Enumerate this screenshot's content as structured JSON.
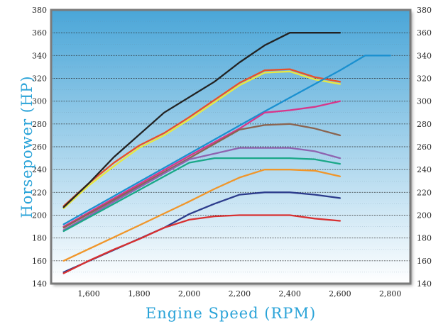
{
  "chart_data": {
    "type": "line",
    "title": "",
    "xlabel": "Engine Speed (RPM)",
    "ylabel": "Horsepower (HP)",
    "xlim": [
      1450,
      2880
    ],
    "ylim": [
      140,
      380
    ],
    "x_ticks": [
      1600,
      1800,
      2000,
      2200,
      2400,
      2600,
      2800
    ],
    "x_tick_labels": [
      "1,600",
      "1,800",
      "2,000",
      "2,200",
      "2,400",
      "2,600",
      "2,800"
    ],
    "y_ticks": [
      140,
      160,
      180,
      200,
      220,
      240,
      260,
      280,
      300,
      320,
      340,
      360,
      380
    ],
    "y_tick_labels": [
      "140",
      "160",
      "180",
      "200",
      "220",
      "240",
      "260",
      "280",
      "300",
      "320",
      "340",
      "360",
      "380"
    ],
    "grid": true,
    "background_gradient": [
      "#4aa6d8",
      "#ffffff"
    ],
    "series": [
      {
        "color": "#e8e840",
        "x": [
          1500,
          1600,
          1700,
          1800,
          1900,
          2000,
          2100,
          2200,
          2300,
          2400,
          2500,
          2600
        ],
        "y": [
          206,
          226,
          243,
          259,
          270,
          284,
          299,
          314,
          325,
          326,
          319,
          315
        ]
      },
      {
        "color": "#e8502a",
        "x": [
          1500,
          1600,
          1700,
          1800,
          1900,
          2000,
          2100,
          2200,
          2300,
          2400,
          2500,
          2600
        ],
        "y": [
          208,
          228,
          246,
          261,
          272,
          286,
          301,
          316,
          327,
          328,
          321,
          317
        ]
      },
      {
        "color": "#222222",
        "x": [
          1500,
          1600,
          1700,
          1900,
          2100,
          2200,
          2300,
          2400,
          2500,
          2600
        ],
        "y": [
          207,
          228,
          251,
          290,
          317,
          334,
          349,
          360,
          360,
          360
        ]
      },
      {
        "color": "#1a90d0",
        "x": [
          1500,
          2300,
          2400,
          2500,
          2600,
          2700,
          2800
        ],
        "y": [
          192,
          291,
          303,
          315,
          327,
          340,
          340
        ]
      },
      {
        "color": "#d8368a",
        "x": [
          1500,
          2000,
          2200,
          2300,
          2400,
          2500,
          2600
        ],
        "y": [
          190,
          252,
          276,
          290,
          292,
          295,
          300
        ]
      },
      {
        "color": "#8a6450",
        "x": [
          1500,
          2000,
          2200,
          2300,
          2400,
          2500,
          2600
        ],
        "y": [
          189,
          250,
          275,
          279,
          280,
          276,
          270
        ]
      },
      {
        "color": "#8e64b0",
        "x": [
          1500,
          2000,
          2100,
          2200,
          2300,
          2400,
          2500,
          2600
        ],
        "y": [
          187,
          249,
          254,
          259,
          259,
          259,
          256,
          250
        ]
      },
      {
        "color": "#1aa888",
        "x": [
          1500,
          2000,
          2100,
          2200,
          2300,
          2400,
          2500,
          2600
        ],
        "y": [
          186,
          246,
          250,
          250,
          250,
          250,
          249,
          245
        ]
      },
      {
        "color": "#f0962a",
        "x": [
          1500,
          1800,
          2000,
          2100,
          2200,
          2300,
          2400,
          2500,
          2600
        ],
        "y": [
          160,
          191,
          212,
          223,
          233,
          240,
          240,
          239,
          234
        ]
      },
      {
        "color": "#2c3c8c",
        "x": [
          1500,
          1900,
          2000,
          2100,
          2200,
          2300,
          2400,
          2500,
          2600
        ],
        "y": [
          150,
          189,
          201,
          210,
          218,
          220,
          220,
          218,
          215
        ]
      },
      {
        "color": "#d83030",
        "x": [
          1500,
          1600,
          1700,
          1800,
          1900,
          2000,
          2100,
          2200,
          2300,
          2400,
          2500,
          2600
        ],
        "y": [
          149,
          160,
          170,
          179,
          189,
          196,
          199,
          200,
          200,
          200,
          197,
          195
        ]
      }
    ]
  }
}
